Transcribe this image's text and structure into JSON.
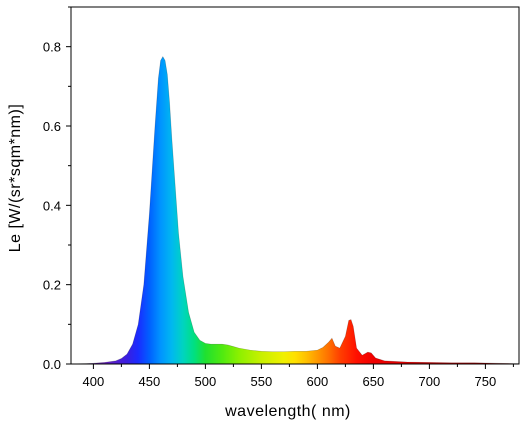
{
  "chart_data": {
    "type": "area",
    "title": "",
    "xlabel": "wavelength(   nm)",
    "ylabel": "Le [W/(sr*sqm*nm)]",
    "xlim": [
      380,
      780
    ],
    "ylim": [
      0,
      0.9
    ],
    "x_ticks": [
      400,
      450,
      500,
      550,
      600,
      650,
      700,
      750
    ],
    "y_ticks": [
      0.0,
      0.2,
      0.4,
      0.6,
      0.8
    ],
    "y_tick_labels": [
      "0.0",
      "0.2",
      "0.4",
      "0.6",
      "0.8"
    ],
    "grid": false,
    "fill": "spectral rainbow colormap by wavelength",
    "series": [
      {
        "x": [
          380,
          400,
          410,
          420,
          425,
          430,
          435,
          440,
          445,
          450,
          455,
          458,
          460,
          462,
          464,
          466,
          468,
          470,
          473,
          476,
          480,
          485,
          490,
          495,
          500,
          505,
          510,
          515,
          520,
          525,
          530,
          540,
          550,
          560,
          570,
          580,
          590,
          600,
          605,
          610,
          613,
          616,
          620,
          625,
          628,
          630,
          632,
          635,
          640,
          645,
          648,
          652,
          660,
          680,
          700,
          720,
          740,
          760,
          780
        ],
        "values": [
          0.0,
          0.002,
          0.004,
          0.008,
          0.014,
          0.025,
          0.05,
          0.1,
          0.2,
          0.38,
          0.6,
          0.72,
          0.765,
          0.775,
          0.765,
          0.73,
          0.66,
          0.57,
          0.45,
          0.33,
          0.22,
          0.13,
          0.08,
          0.06,
          0.052,
          0.05,
          0.05,
          0.05,
          0.048,
          0.044,
          0.04,
          0.035,
          0.032,
          0.031,
          0.031,
          0.032,
          0.032,
          0.035,
          0.042,
          0.055,
          0.065,
          0.045,
          0.04,
          0.07,
          0.11,
          0.112,
          0.095,
          0.04,
          0.022,
          0.03,
          0.028,
          0.015,
          0.008,
          0.005,
          0.004,
          0.003,
          0.003,
          0.002,
          0.001
        ]
      }
    ]
  }
}
